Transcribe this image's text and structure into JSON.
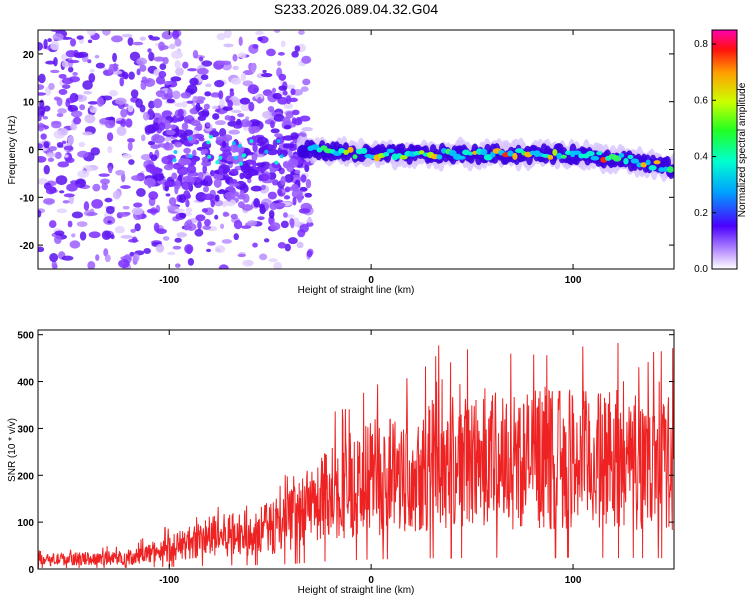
{
  "chart_data": [
    {
      "type": "heatmap",
      "title": "S233.2026.089.04.32.G04",
      "xlabel": "Height of straight line (km)",
      "ylabel": "Frequency (Hz)",
      "xlim": [
        -165,
        150
      ],
      "ylim": [
        -25,
        25
      ],
      "xticks": [
        -100,
        0,
        100
      ],
      "yticks": [
        -20,
        -10,
        0,
        10,
        20
      ],
      "colorbar": {
        "label": "Normalized spectral amplitude",
        "range": [
          0.0,
          0.85
        ],
        "ticks": [
          0.0,
          0.2,
          0.4,
          0.6,
          0.8
        ]
      },
      "ridge": {
        "description_free": true,
        "x_start": -35,
        "x_end": 150,
        "frequency": [
          [
            -35,
            0
          ],
          [
            0,
            -1
          ],
          [
            50,
            -1
          ],
          [
            100,
            -1
          ],
          [
            125,
            -2
          ],
          [
            150,
            -4
          ]
        ]
      }
    },
    {
      "type": "line",
      "xlabel": "Height of straight line (km)",
      "ylabel": "SNR (10 * v/v)",
      "xlim": [
        -165,
        150
      ],
      "ylim": [
        0,
        510
      ],
      "xticks": [
        -100,
        0,
        100
      ],
      "yticks": [
        0,
        100,
        200,
        300,
        400,
        500
      ],
      "series": [
        {
          "name": "SNR",
          "color": "#ee2222",
          "envelope": [
            [
              -165,
              20
            ],
            [
              -120,
              25
            ],
            [
              -100,
              45
            ],
            [
              -80,
              70
            ],
            [
              -60,
              80
            ],
            [
              -45,
              95
            ],
            [
              -35,
              120
            ],
            [
              -20,
              170
            ],
            [
              0,
              200
            ],
            [
              30,
              230
            ],
            [
              60,
              240
            ],
            [
              100,
              240
            ],
            [
              150,
              230
            ]
          ]
        }
      ]
    }
  ]
}
